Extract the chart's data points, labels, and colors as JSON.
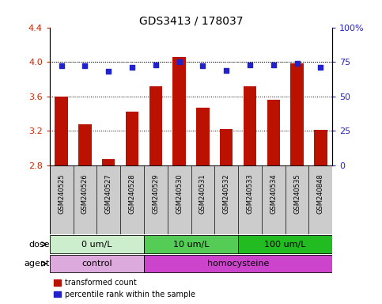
{
  "title": "GDS3413 / 178037",
  "samples": [
    "GSM240525",
    "GSM240526",
    "GSM240527",
    "GSM240528",
    "GSM240529",
    "GSM240530",
    "GSM240531",
    "GSM240532",
    "GSM240533",
    "GSM240534",
    "GSM240535",
    "GSM240848"
  ],
  "transformed_counts": [
    3.6,
    3.28,
    2.87,
    3.42,
    3.72,
    4.06,
    3.47,
    3.22,
    3.72,
    3.56,
    3.98,
    3.21
  ],
  "percentile_ranks": [
    72,
    72,
    68,
    71,
    73,
    75,
    72,
    69,
    73,
    73,
    74,
    71
  ],
  "ylim_left": [
    2.8,
    4.4
  ],
  "ylim_right": [
    0,
    100
  ],
  "yticks_left": [
    2.8,
    3.2,
    3.6,
    4.0,
    4.4
  ],
  "yticks_right": [
    0,
    25,
    50,
    75,
    100
  ],
  "ytick_labels_left": [
    "2.8",
    "3.2",
    "3.6",
    "4.0",
    "4.4"
  ],
  "ytick_labels_right": [
    "0",
    "25",
    "50",
    "75",
    "100%"
  ],
  "bar_color": "#bb1100",
  "dot_color": "#2222cc",
  "dose_groups": [
    {
      "label": "0 um/L",
      "start": 0,
      "end": 4,
      "color": "#cceecc"
    },
    {
      "label": "10 um/L",
      "start": 4,
      "end": 8,
      "color": "#55cc55"
    },
    {
      "label": "100 um/L",
      "start": 8,
      "end": 12,
      "color": "#22bb22"
    }
  ],
  "agent_groups": [
    {
      "label": "control",
      "start": 0,
      "end": 4,
      "color": "#ddaadd"
    },
    {
      "label": "homocysteine",
      "start": 4,
      "end": 12,
      "color": "#cc44cc"
    }
  ],
  "legend_items": [
    {
      "label": "transformed count",
      "color": "#bb1100"
    },
    {
      "label": "percentile rank within the sample",
      "color": "#2222cc"
    }
  ],
  "xlabel_dose": "dose",
  "xlabel_agent": "agent",
  "tick_label_color_left": "#cc2200",
  "tick_label_color_right": "#2222cc",
  "bar_width": 0.55,
  "sample_bg_color": "#cccccc",
  "sample_border_color": "#999999"
}
